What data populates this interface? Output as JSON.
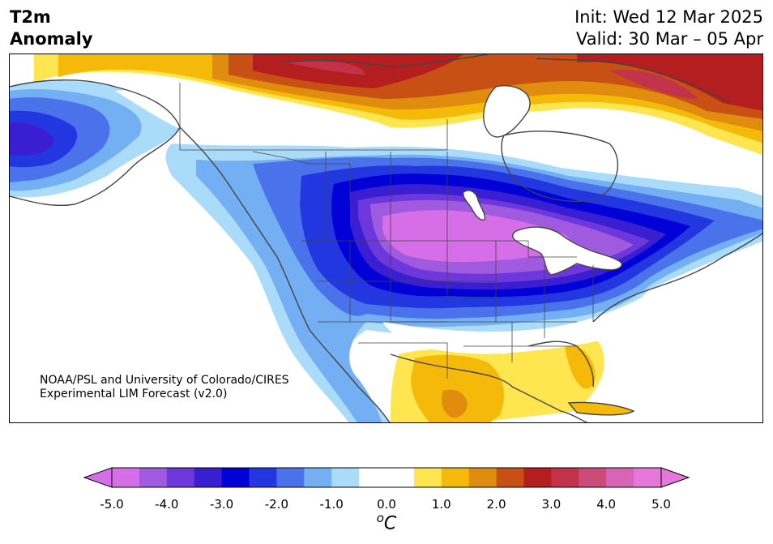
{
  "title": {
    "variable_line1": "T2m",
    "variable_line2": "Anomaly",
    "init": "Init: Wed 12 Mar 2025",
    "valid": "Valid: 30 Mar – 05 Apr"
  },
  "credit": {
    "line1": "NOAA/PSL and University of Colorado/CIRES",
    "line2": "Experimental LIM Forecast (v2.0)"
  },
  "colorbar": {
    "ticks": [
      "-5.0",
      "-4.0",
      "-3.0",
      "-2.0",
      "-1.0",
      "0.0",
      "1.0",
      "2.0",
      "3.0",
      "4.0",
      "5.0"
    ],
    "unit_sup": "o",
    "unit": "C",
    "colors": [
      "#d66ee8",
      "#a05ae0",
      "#6e37dc",
      "#3a1ed2",
      "#0000d7",
      "#2337e1",
      "#4a73eb",
      "#73aff2",
      "#aadcfa",
      "#ffffff",
      "#ffffff",
      "#ffe650",
      "#f5b90a",
      "#e08c0f",
      "#c85014",
      "#b41e1e",
      "#c3324b",
      "#cd4b78",
      "#d764b4",
      "#e678dc"
    ],
    "extend_min_color": "#d66ee8",
    "extend_max_color": "#e678dc"
  },
  "map": {
    "region": "North America",
    "land_color": "#ffffff",
    "coast_color": "#444444"
  }
}
